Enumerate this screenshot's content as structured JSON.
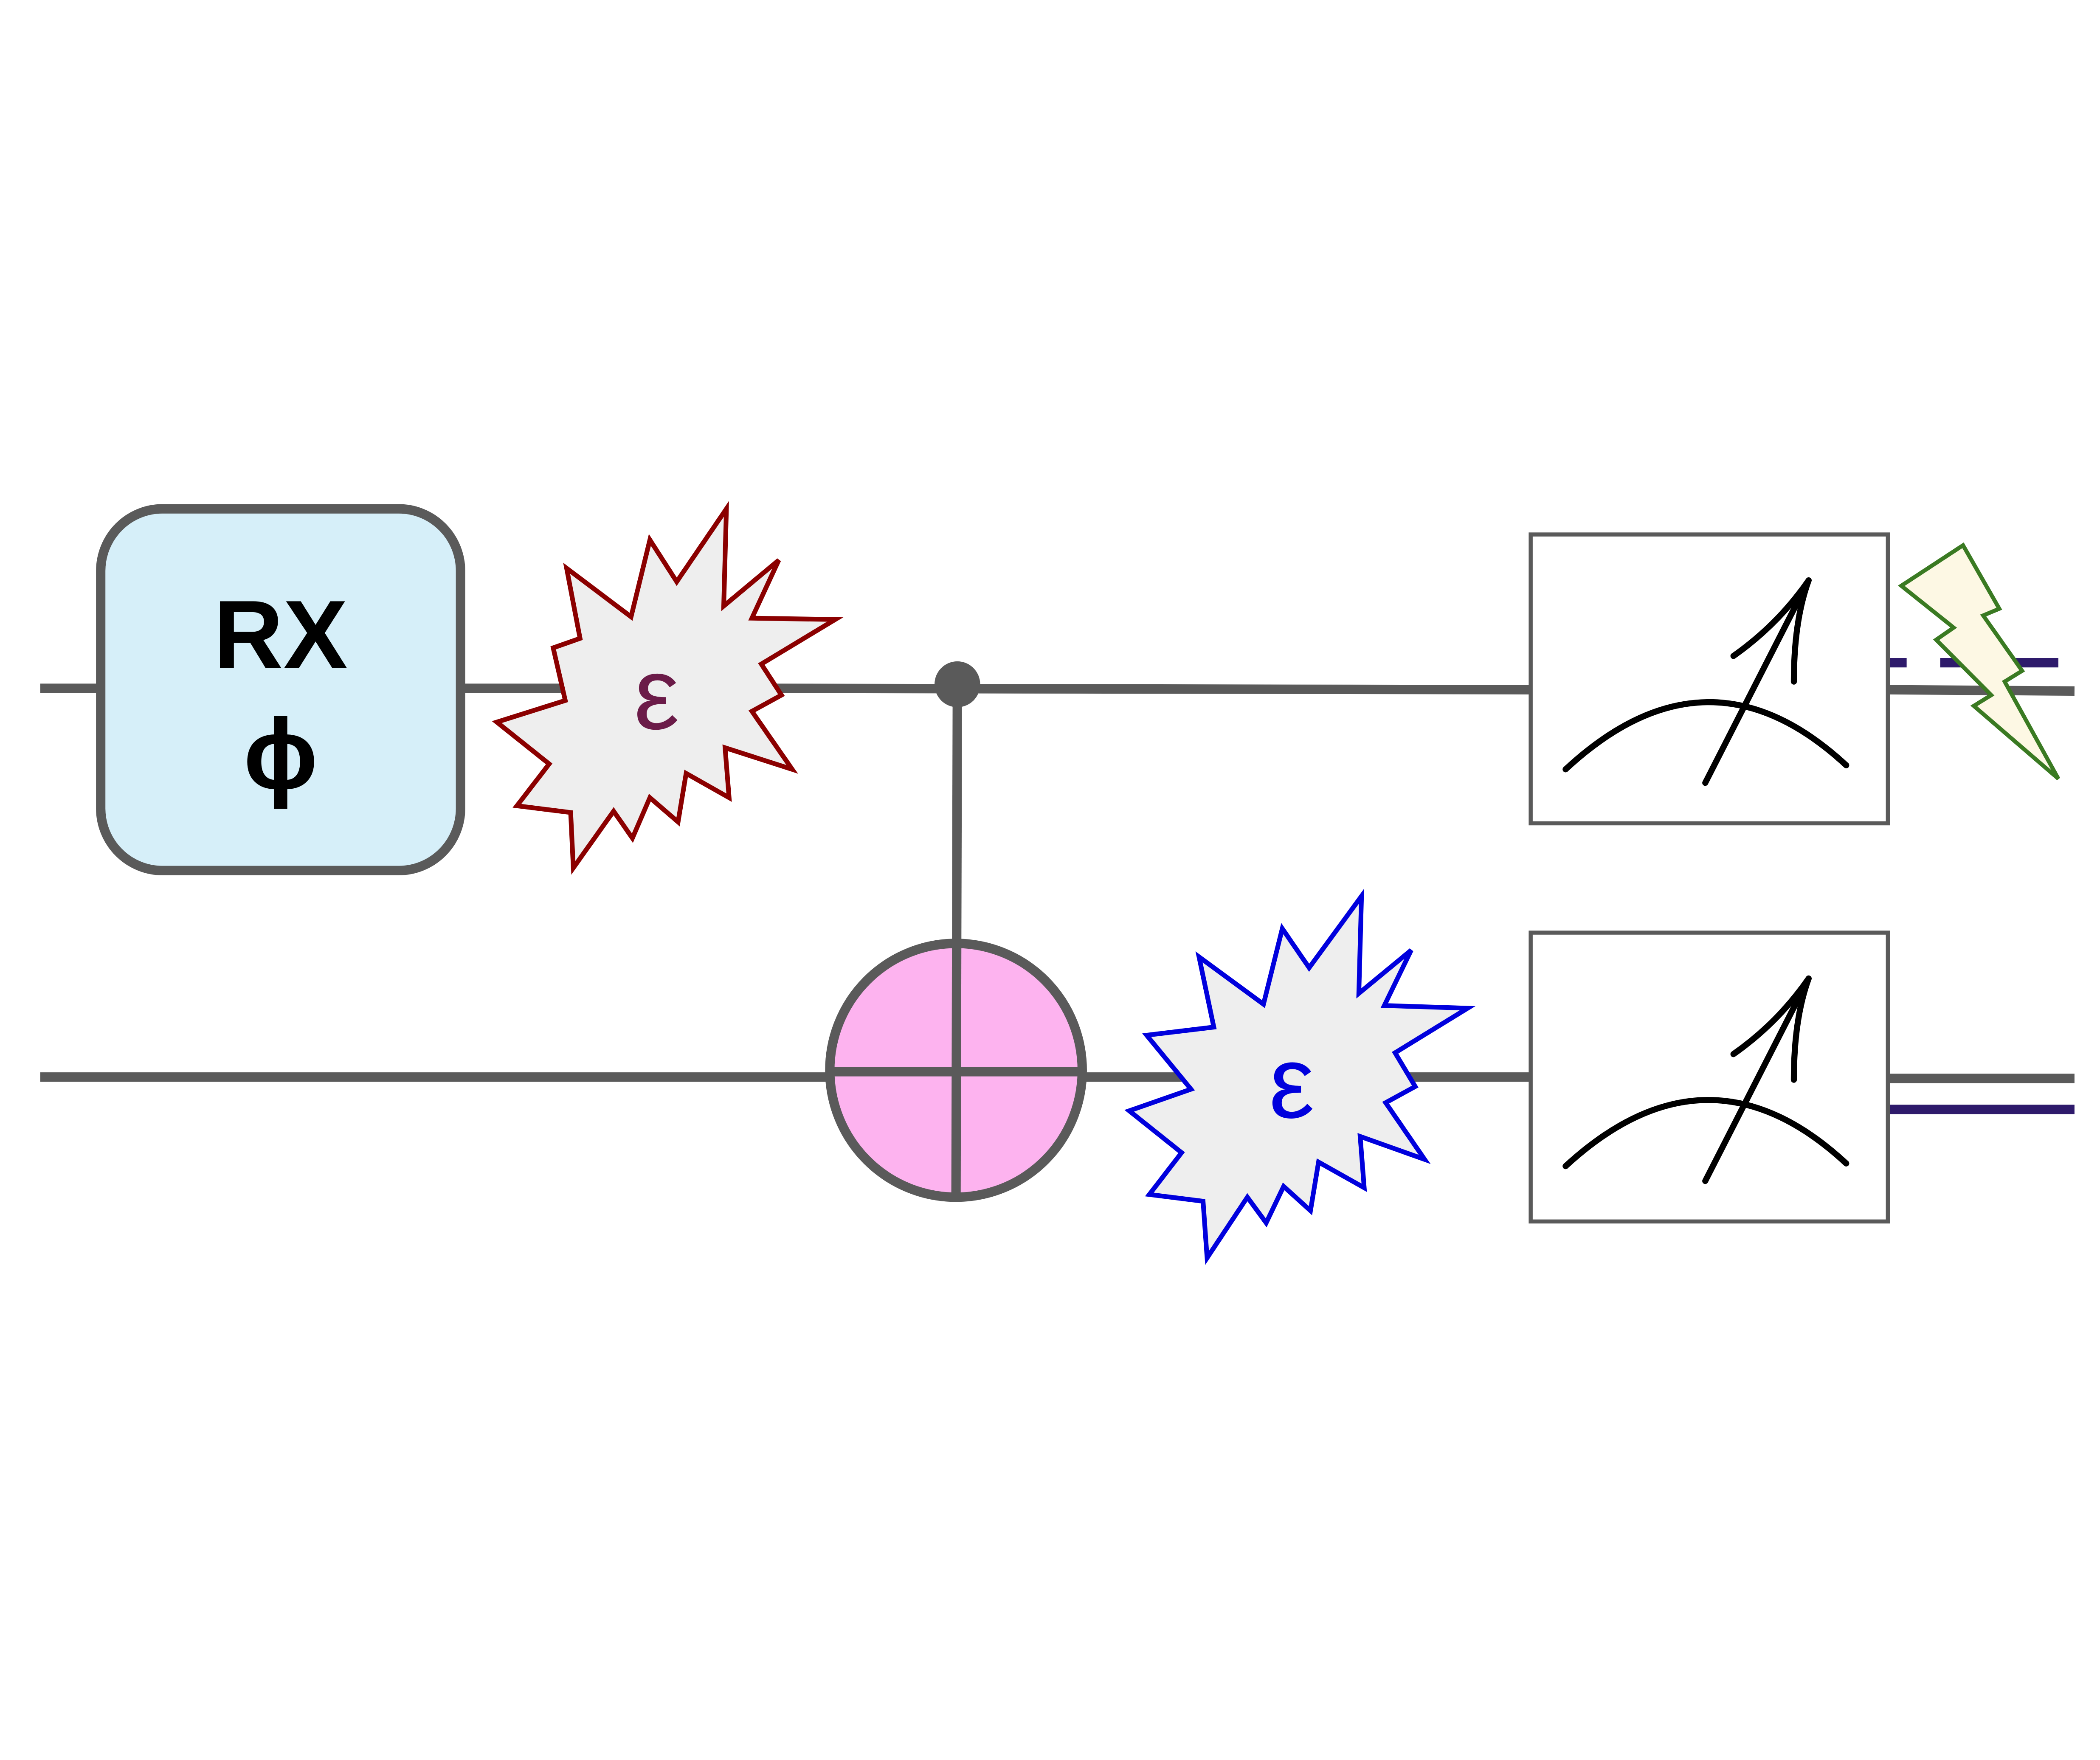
{
  "diagram": {
    "type": "quantum-circuit",
    "qubits": 2,
    "rx_gate": {
      "name": "RX",
      "param": "ϕ"
    },
    "noise_top": {
      "symbol": "ε"
    },
    "noise_bottom": {
      "symbol": "ε"
    },
    "colors": {
      "wire": "#5a5a5a",
      "rx_fill": "#d6eff9",
      "cnot_fill": "#fdb3ef",
      "noise_fill": "#eeeeee",
      "noise_top_stroke": "#8b0000",
      "noise_top_text": "#6b1b48",
      "noise_bottom_stroke": "#0000dd",
      "noise_bottom_text": "#0000dd",
      "classical_wire": "#2e1a6b",
      "lightning_fill": "#fdf8e4",
      "lightning_stroke": "#3a7a22"
    }
  }
}
